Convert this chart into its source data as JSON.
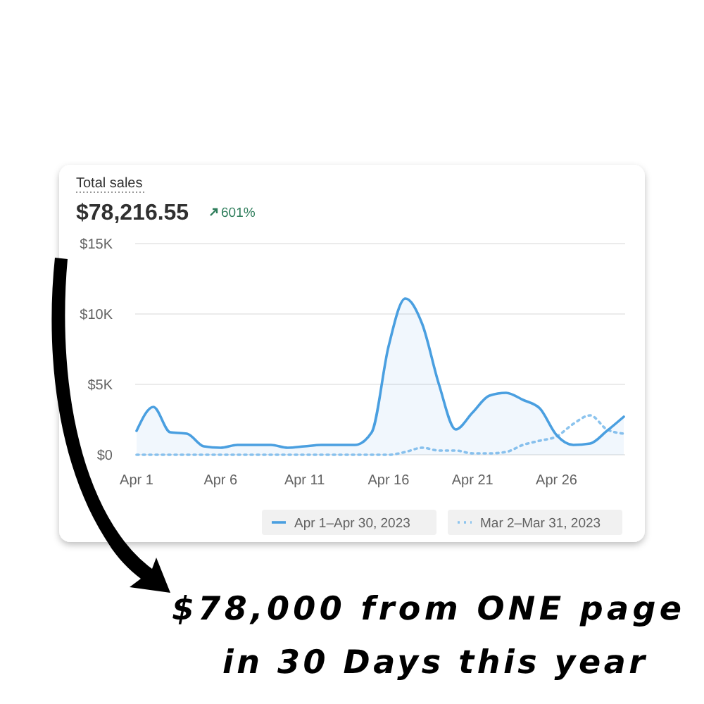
{
  "chart_data": {
    "type": "area",
    "title": "Total sales",
    "subtitle": "$78,216.55",
    "annotations": [
      "601%",
      "$78,000 from ONE page",
      "in 30 Days this year"
    ],
    "x": [
      "2023-04-01",
      "2023-04-02",
      "2023-04-03",
      "2023-04-04",
      "2023-04-05",
      "2023-04-06",
      "2023-04-07",
      "2023-04-08",
      "2023-04-09",
      "2023-04-10",
      "2023-04-11",
      "2023-04-12",
      "2023-04-13",
      "2023-04-14",
      "2023-04-15",
      "2023-04-16",
      "2023-04-17",
      "2023-04-18",
      "2023-04-19",
      "2023-04-20",
      "2023-04-21",
      "2023-04-22",
      "2023-04-23",
      "2023-04-24",
      "2023-04-25",
      "2023-04-26",
      "2023-04-27",
      "2023-04-28",
      "2023-04-29",
      "2023-04-30"
    ],
    "series": [
      {
        "name": "Apr 1–Apr 30, 2023",
        "color": "#4a9fe0",
        "line_style": "solid",
        "values": [
          1.7,
          3.4,
          1.6,
          1.5,
          0.6,
          0.5,
          0.7,
          0.7,
          0.7,
          0.5,
          0.6,
          0.7,
          0.7,
          0.7,
          1.6,
          7.7,
          11.1,
          9.3,
          5.0,
          1.8,
          3.0,
          4.2,
          4.4,
          3.9,
          3.3,
          1.4,
          0.7,
          0.8,
          1.7,
          2.7
        ]
      },
      {
        "name": "Mar 2–Mar 31, 2023",
        "type": "line",
        "color": "#8cc4ee",
        "line_style": "dotted",
        "values": [
          0,
          0,
          0,
          0,
          0,
          0,
          0,
          0,
          0,
          0,
          0,
          0,
          0,
          0,
          0,
          0,
          0.2,
          0.5,
          0.3,
          0.3,
          0.1,
          0.1,
          0.2,
          0.7,
          1.0,
          1.3,
          2.2,
          2.8,
          1.8,
          1.5
        ]
      }
    ],
    "xlim": [
      "2023-04-01",
      "2023-04-30"
    ],
    "xticks": [
      {
        "value": "2023-04-01",
        "label": "Apr 1"
      },
      {
        "value": "2023-04-06",
        "label": "Apr 6"
      },
      {
        "value": "2023-04-11",
        "label": "Apr 11"
      },
      {
        "value": "2023-04-16",
        "label": "Apr 16"
      },
      {
        "value": "2023-04-21",
        "label": "Apr 21"
      },
      {
        "value": "2023-04-26",
        "label": "Apr 26"
      }
    ],
    "ylim": [
      0,
      15
    ],
    "yticks": [
      {
        "value": 0,
        "label": "$0"
      },
      {
        "value": 5,
        "label": "$5K"
      },
      {
        "value": 10,
        "label": "$10K"
      },
      {
        "value": 15,
        "label": "$15K"
      }
    ],
    "grid": "y",
    "legend": "bottom",
    "marker": "none"
  }
}
